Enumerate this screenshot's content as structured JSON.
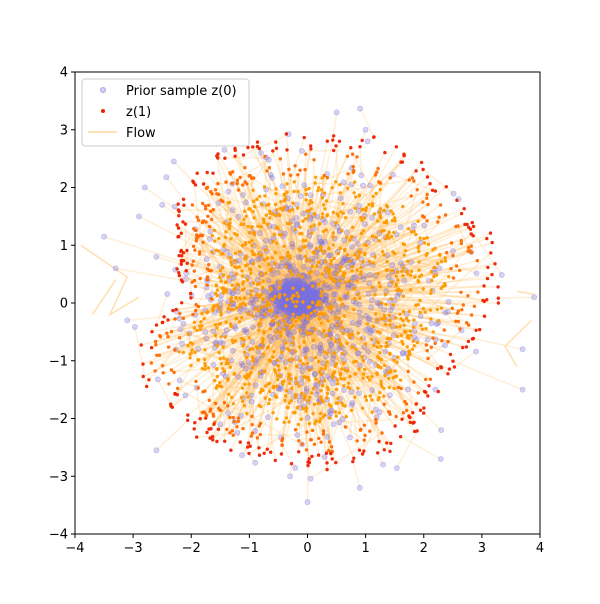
{
  "chart_data": {
    "type": "scatter",
    "title": "",
    "xlabel": "",
    "ylabel": "",
    "xlim": [
      -4,
      4
    ],
    "ylim": [
      -4,
      4
    ],
    "xticks": [
      -4,
      -3,
      -2,
      -1,
      0,
      1,
      2,
      3,
      4
    ],
    "yticks": [
      -4,
      -3,
      -2,
      -1,
      0,
      1,
      2,
      3,
      4
    ],
    "xtick_labels": [
      "−4",
      "−3",
      "−2",
      "−1",
      "0",
      "1",
      "2",
      "3",
      "4"
    ],
    "ytick_labels": [
      "−4",
      "−3",
      "−2",
      "−1",
      "0",
      "1",
      "2",
      "3",
      "4"
    ],
    "grid": false,
    "legend": {
      "placement": "top-left"
    },
    "description": "Prior samples z(0) clustered near the origin are mapped along flow trajectories to z(1), which fill a lumpy disc of radius about 3 with denser red points on the rim.",
    "series": [
      {
        "name": "Prior sample z(0)",
        "kind": "scatter",
        "color": "#7b72e0",
        "marker": "circle",
        "points": [
          [
            -0.2,
            0.1
          ],
          [
            -0.1,
            0.05
          ],
          [
            0.05,
            0.0
          ],
          [
            -0.3,
            0.2
          ],
          [
            0.1,
            -0.1
          ],
          [
            -0.15,
            -0.05
          ],
          [
            0.5,
            3.3
          ],
          [
            -2.3,
            2.45
          ],
          [
            -3.5,
            1.15
          ],
          [
            -2.8,
            2.0
          ],
          [
            -2.5,
            1.7
          ],
          [
            -2.9,
            1.5
          ],
          [
            -2.6,
            0.8
          ],
          [
            -3.3,
            0.6
          ],
          [
            -3.1,
            -0.3
          ],
          [
            3.7,
            -1.5
          ],
          [
            3.9,
            0.1
          ],
          [
            3.7,
            -0.8
          ],
          [
            2.3,
            -2.2
          ],
          [
            1.3,
            -2.8
          ],
          [
            0.0,
            -3.45
          ],
          [
            0.9,
            -3.2
          ],
          [
            -0.3,
            -3.0
          ],
          [
            -2.6,
            -2.55
          ],
          [
            1.0,
            3.0
          ],
          [
            -0.8,
            2.6
          ],
          [
            2.6,
            1.8
          ],
          [
            2.2,
            -1.5
          ],
          [
            -1.5,
            -2.1
          ],
          [
            0.6,
            0.7
          ],
          [
            1.4,
            -0.7
          ],
          [
            -0.8,
            -1.2
          ],
          [
            0.3,
            1.4
          ],
          [
            -1.3,
            0.5
          ],
          [
            2.5,
            0.9
          ],
          [
            -2.1,
            -1.6
          ]
        ]
      },
      {
        "name": "z(1)",
        "kind": "scatter",
        "color": "#ee2200",
        "marker": "circle",
        "shape": {
          "center": [
            0.05,
            0.0
          ],
          "radius_by_angle_deg": [
            [
              0,
              3.3
            ],
            [
              20,
              3.3
            ],
            [
              40,
              3.1
            ],
            [
              60,
              3.2
            ],
            [
              80,
              2.9
            ],
            [
              100,
              2.95
            ],
            [
              120,
              3.05
            ],
            [
              140,
              2.95
            ],
            [
              160,
              2.4
            ],
            [
              180,
              2.2
            ],
            [
              190,
              2.9
            ],
            [
              200,
              3.3
            ],
            [
              220,
              3.0
            ],
            [
              240,
              2.95
            ],
            [
              260,
              2.85
            ],
            [
              280,
              2.9
            ],
            [
              300,
              2.9
            ],
            [
              320,
              2.75
            ],
            [
              340,
              2.7
            ],
            [
              360,
              3.3
            ]
          ]
        }
      },
      {
        "name": "Flow",
        "kind": "line",
        "color": "#ffb74d"
      }
    ]
  }
}
